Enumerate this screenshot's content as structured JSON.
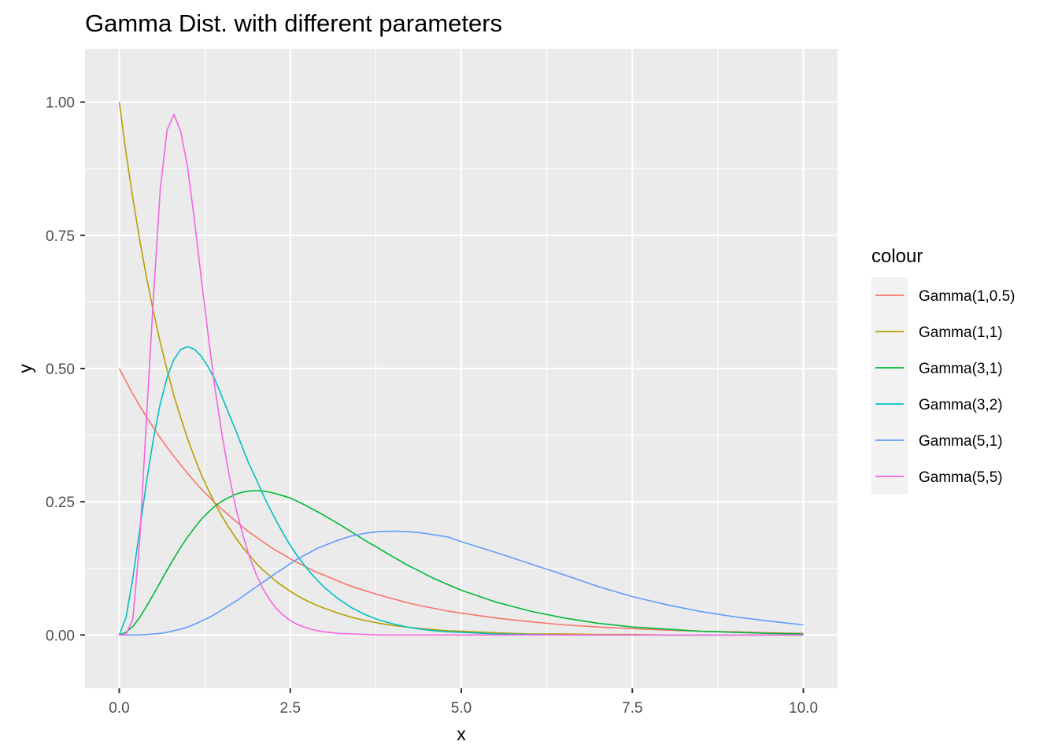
{
  "chart_data": {
    "type": "line",
    "title": "Gamma Dist. with different parameters",
    "xlabel": "x",
    "ylabel": "y",
    "xlim": [
      -0.5,
      10.5
    ],
    "ylim": [
      -0.1,
      1.1
    ],
    "x_ticks": [
      0,
      2.5,
      5,
      7.5,
      10
    ],
    "x_tick_labels": [
      "0.0",
      "2.5",
      "5.0",
      "7.5",
      "10.0"
    ],
    "y_ticks": [
      0,
      0.25,
      0.5,
      0.75,
      1
    ],
    "y_tick_labels": [
      "0.00",
      "0.25",
      "0.50",
      "0.75",
      "1.00"
    ],
    "grid": true,
    "legend_title": "colour",
    "legend_position": "right",
    "x": [
      0,
      0.1,
      0.2,
      0.3,
      0.4,
      0.5,
      0.6,
      0.7,
      0.8,
      0.9,
      1,
      1.1,
      1.2,
      1.3,
      1.4,
      1.5,
      1.6,
      1.7,
      1.8,
      1.9,
      2,
      2.1,
      2.2,
      2.3,
      2.4,
      2.5,
      2.6,
      2.7,
      2.8,
      2.9,
      3,
      3.2,
      3.4,
      3.6,
      3.8,
      4,
      4.2,
      4.4,
      4.6,
      4.8,
      5,
      5.5,
      6,
      6.5,
      7,
      7.5,
      8,
      8.5,
      9,
      9.5,
      10
    ],
    "series": [
      {
        "name": "Gamma(1,0.5)",
        "color": "#F8766D",
        "values": [
          0.5,
          0.476,
          0.452,
          0.43,
          0.409,
          0.389,
          0.37,
          0.352,
          0.335,
          0.319,
          0.303,
          0.288,
          0.274,
          0.261,
          0.248,
          0.236,
          0.225,
          0.214,
          0.203,
          0.193,
          0.184,
          0.175,
          0.166,
          0.158,
          0.151,
          0.143,
          0.136,
          0.13,
          0.123,
          0.117,
          0.112,
          0.101,
          0.091,
          0.083,
          0.075,
          0.068,
          0.061,
          0.055,
          0.05,
          0.045,
          0.041,
          0.032,
          0.025,
          0.019,
          0.015,
          0.012,
          0.009,
          0.007,
          0.006,
          0.004,
          0.003
        ]
      },
      {
        "name": "Gamma(1,1)",
        "color": "#B79F00",
        "values": [
          1.0,
          0.905,
          0.819,
          0.741,
          0.67,
          0.607,
          0.549,
          0.497,
          0.449,
          0.407,
          0.368,
          0.333,
          0.301,
          0.273,
          0.247,
          0.223,
          0.202,
          0.183,
          0.165,
          0.15,
          0.135,
          0.122,
          0.111,
          0.1,
          0.091,
          0.082,
          0.074,
          0.067,
          0.061,
          0.055,
          0.05,
          0.041,
          0.033,
          0.027,
          0.022,
          0.018,
          0.015,
          0.012,
          0.01,
          0.008,
          0.007,
          0.004,
          0.002,
          0.002,
          0.001,
          0.001,
          0,
          0,
          0,
          0,
          0
        ]
      },
      {
        "name": "Gamma(3,1)",
        "color": "#00BA38",
        "values": [
          0,
          0.005,
          0.016,
          0.033,
          0.054,
          0.076,
          0.099,
          0.122,
          0.144,
          0.165,
          0.184,
          0.201,
          0.217,
          0.23,
          0.242,
          0.251,
          0.258,
          0.264,
          0.268,
          0.27,
          0.271,
          0.27,
          0.268,
          0.265,
          0.261,
          0.257,
          0.251,
          0.245,
          0.238,
          0.231,
          0.224,
          0.209,
          0.193,
          0.177,
          0.162,
          0.147,
          0.132,
          0.119,
          0.106,
          0.095,
          0.084,
          0.062,
          0.045,
          0.032,
          0.022,
          0.015,
          0.011,
          0.007,
          0.005,
          0.003,
          0.002
        ]
      },
      {
        "name": "Gamma(3,2)",
        "color": "#00BFC4",
        "values": [
          0,
          0.033,
          0.107,
          0.198,
          0.288,
          0.368,
          0.434,
          0.484,
          0.517,
          0.536,
          0.541,
          0.536,
          0.523,
          0.503,
          0.479,
          0.448,
          0.416,
          0.385,
          0.352,
          0.32,
          0.293,
          0.264,
          0.238,
          0.213,
          0.19,
          0.168,
          0.149,
          0.132,
          0.116,
          0.102,
          0.089,
          0.068,
          0.051,
          0.038,
          0.028,
          0.021,
          0.015,
          0.011,
          0.008,
          0.006,
          0.005,
          0.002,
          0.001,
          0,
          0,
          0,
          0,
          0,
          0,
          0,
          0
        ]
      },
      {
        "name": "Gamma(5,1)",
        "color": "#619CFF",
        "values": [
          0,
          0,
          0,
          0,
          0.001,
          0.002,
          0.003,
          0.005,
          0.008,
          0.011,
          0.015,
          0.02,
          0.026,
          0.032,
          0.039,
          0.047,
          0.055,
          0.063,
          0.072,
          0.081,
          0.09,
          0.099,
          0.108,
          0.117,
          0.125,
          0.134,
          0.142,
          0.149,
          0.156,
          0.163,
          0.168,
          0.178,
          0.186,
          0.191,
          0.194,
          0.195,
          0.194,
          0.192,
          0.188,
          0.184,
          0.175,
          0.155,
          0.134,
          0.113,
          0.091,
          0.072,
          0.057,
          0.044,
          0.034,
          0.026,
          0.019
        ]
      },
      {
        "name": "Gamma(5,5)",
        "color": "#F564E3",
        "values": [
          0,
          0.001,
          0.03,
          0.178,
          0.409,
          0.633,
          0.837,
          0.948,
          0.977,
          0.944,
          0.877,
          0.777,
          0.669,
          0.563,
          0.463,
          0.378,
          0.304,
          0.241,
          0.191,
          0.148,
          0.114,
          0.087,
          0.066,
          0.049,
          0.037,
          0.027,
          0.02,
          0.015,
          0.011,
          0.008,
          0.006,
          0.003,
          0.002,
          0.001,
          0,
          0,
          0,
          0,
          0,
          0,
          0,
          0,
          0,
          0,
          0,
          0,
          0,
          0,
          0,
          0,
          0
        ]
      }
    ]
  }
}
